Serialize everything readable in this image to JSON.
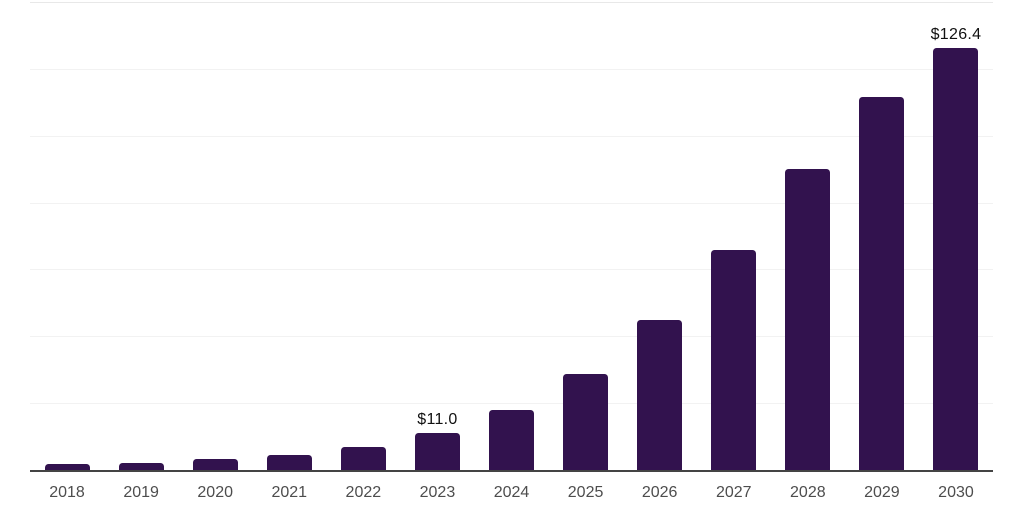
{
  "chart_data": {
    "type": "bar",
    "categories": [
      "2018",
      "2019",
      "2020",
      "2021",
      "2022",
      "2023",
      "2024",
      "2025",
      "2026",
      "2027",
      "2028",
      "2029",
      "2030"
    ],
    "values": [
      1.7,
      2.2,
      3.2,
      4.4,
      6.9,
      11.0,
      18.0,
      28.8,
      45.0,
      65.8,
      90.2,
      111.5,
      126.4
    ],
    "data_labels": [
      "",
      "",
      "",
      "",
      "",
      "$11.0",
      "",
      "",
      "",
      "",
      "",
      "",
      "$126.4"
    ],
    "title": "",
    "xlabel": "",
    "ylabel": "",
    "ylim": [
      0,
      140
    ],
    "gridline_step": 20,
    "grid": "horizontal-only",
    "legend": "none",
    "colors": {
      "bar": "#32124E",
      "data_label": "#111111",
      "tick_label": "#4D4D4D",
      "axis_line": "#444444",
      "gridline": "#F2F2F2",
      "top_gridline": "#E8E8E8",
      "background": "#FFFFFF"
    }
  }
}
